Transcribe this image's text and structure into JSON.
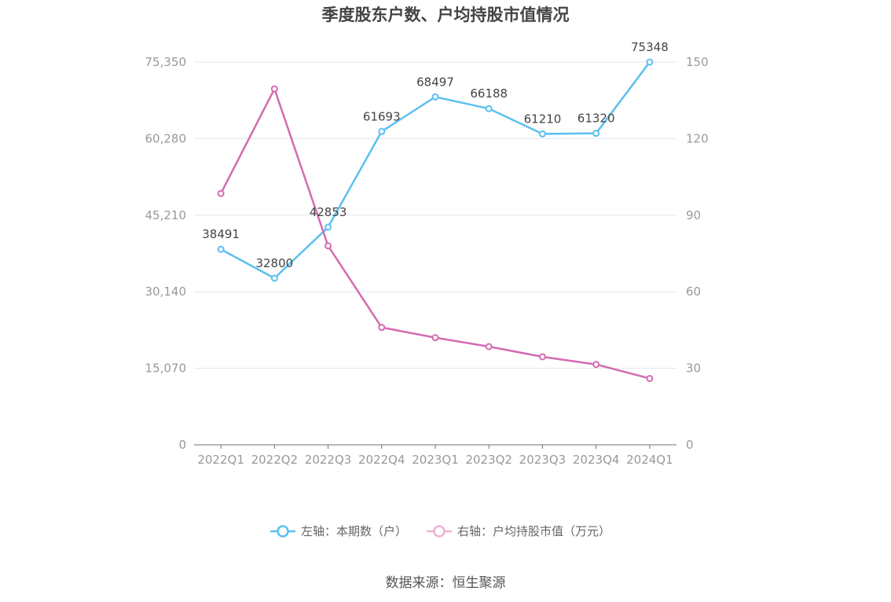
{
  "chart_data": {
    "type": "line",
    "title": "季度股东户数、户均持股市值情况",
    "categories": [
      "2022Q1",
      "2022Q2",
      "2022Q3",
      "2022Q4",
      "2023Q1",
      "2023Q2",
      "2023Q3",
      "2023Q4",
      "2024Q1"
    ],
    "y_left": {
      "ticks": [
        "0",
        "15,070",
        "30,140",
        "45,210",
        "60,280",
        "75,350"
      ],
      "range": [
        0,
        75350
      ]
    },
    "y_right": {
      "ticks": [
        "0",
        "30",
        "60",
        "90",
        "120",
        "150"
      ],
      "range": [
        0,
        150
      ]
    },
    "grid": true,
    "legend_position": "bottom",
    "series": [
      {
        "name": "左轴：本期数（户）",
        "axis": "left",
        "color": "#5bc0f0",
        "values": [
          38491,
          32800,
          42853,
          61693,
          68497,
          66188,
          61210,
          61320,
          75348
        ],
        "labels": [
          "38491",
          "32800",
          "42853",
          "61693",
          "68497",
          "66188",
          "61210",
          "61320",
          "75348"
        ]
      },
      {
        "name": "右轴：户均持股市值（万元）",
        "axis": "right",
        "color": "#d46bb0",
        "values": [
          98.5,
          139.5,
          78,
          46,
          42,
          38.5,
          34.5,
          31.5,
          26
        ]
      }
    ],
    "source": "数据来源：恒生聚源"
  }
}
